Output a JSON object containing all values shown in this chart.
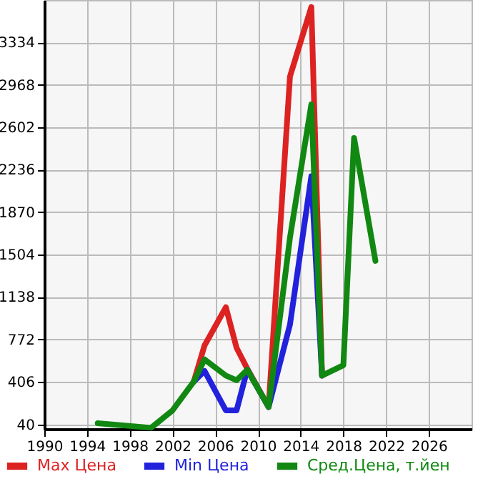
{
  "chart_data": {
    "type": "line",
    "x": [
      1995,
      2000,
      2002,
      2004,
      2005,
      2007,
      2008,
      2009,
      2011,
      2013,
      2015,
      2016,
      2018,
      2019,
      2021
    ],
    "series": [
      {
        "name": "Max Цена",
        "color": "#dd2222",
        "values": [
          null,
          null,
          null,
          410,
          720,
          1050,
          700,
          520,
          190,
          3040,
          3640,
          460,
          null,
          null,
          null
        ]
      },
      {
        "name": "Min Цена",
        "color": "#2222dd",
        "values": [
          null,
          null,
          null,
          410,
          500,
          160,
          160,
          510,
          190,
          900,
          2180,
          460,
          null,
          null,
          null
        ]
      },
      {
        "name": "Сред.Цена, т.йен",
        "color": "#118811",
        "values": [
          50,
          10,
          160,
          410,
          600,
          460,
          420,
          510,
          190,
          1650,
          2800,
          460,
          550,
          2510,
          1450
        ]
      }
    ],
    "xlim": [
      1990,
      2030
    ],
    "xticks": [
      1990,
      1994,
      1998,
      2002,
      2006,
      2010,
      2014,
      2018,
      2022,
      2026
    ],
    "ylim": [
      0,
      3700
    ],
    "yticks": [
      40,
      406,
      772,
      1138,
      1504,
      1870,
      2236,
      2602,
      2968,
      3334
    ],
    "grid": true,
    "legend": "bottom",
    "marker": "none",
    "line_style": "solid"
  }
}
